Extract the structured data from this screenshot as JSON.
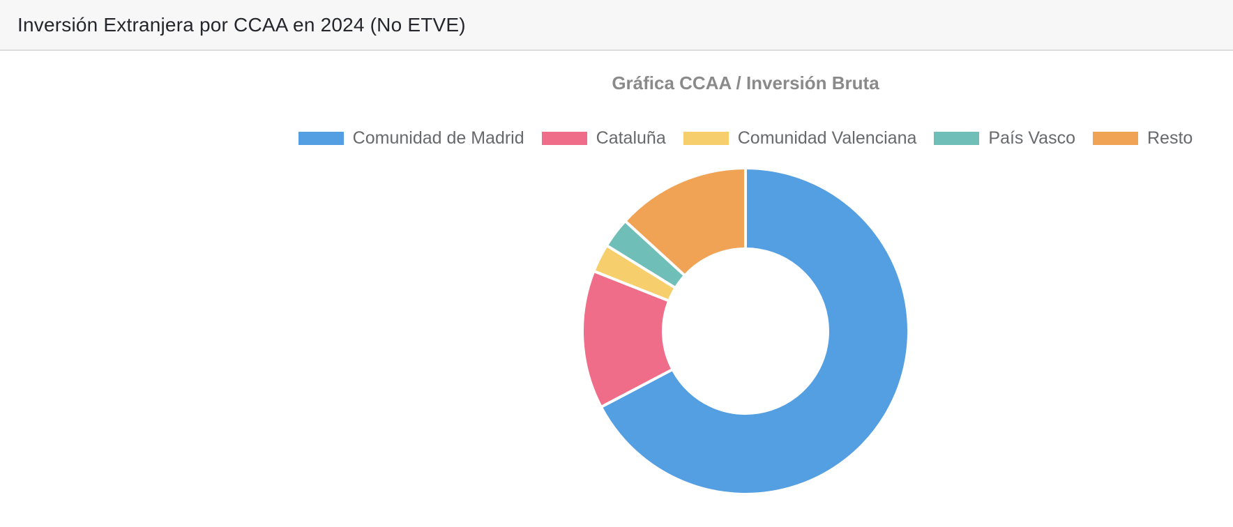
{
  "header": {
    "title": "Inversión Extranjera por CCAA en 2024 (No ETVE)"
  },
  "chart_data": {
    "type": "pie",
    "subtype": "doughnut",
    "title": "Gráfica CCAA / Inversión Bruta",
    "categories": [
      "Comunidad de Madrid",
      "Cataluña",
      "Comunidad Valenciana",
      "País Vasco",
      "Resto"
    ],
    "values": [
      67.3,
      13.7,
      2.8,
      3.0,
      13.2
    ],
    "values_unit": "percent-share-estimated-from-arc-angles",
    "colors": [
      "#549ee2",
      "#ef6d88",
      "#f7ce6c",
      "#6fbeb8",
      "#f0a355"
    ],
    "legend_position": "top",
    "start_angle_deg": 0,
    "direction": "clockwise",
    "cutout_ratio": 0.5,
    "slice_border_color": "#ffffff",
    "title_color": "#8a8a8a",
    "legend_text_color": "#67696c"
  }
}
